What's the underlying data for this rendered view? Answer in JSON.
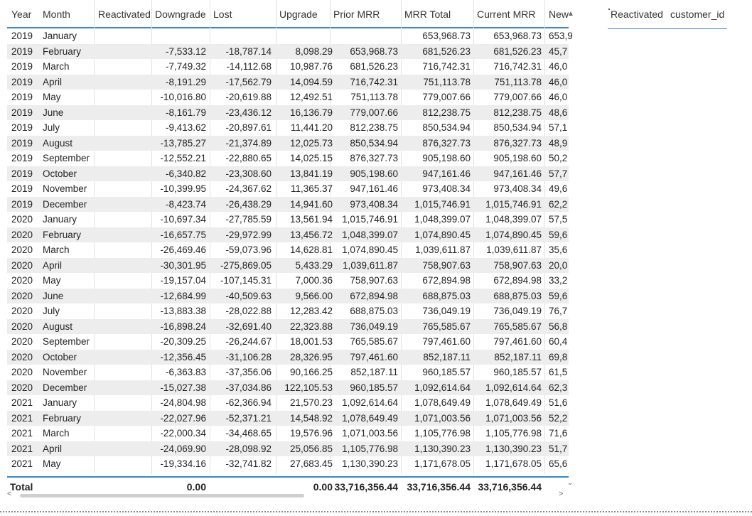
{
  "columns": [
    "Year",
    "Month",
    "Reactivated",
    "Downgrade",
    "Lost",
    "Upgrade",
    "Prior MRR",
    "MRR Total",
    "Current MRR",
    "New"
  ],
  "rows": [
    [
      "2019",
      "January",
      "",
      "",
      "",
      "",
      "",
      "653,968.73",
      "653,968.73",
      "653,9"
    ],
    [
      "2019",
      "February",
      "",
      "-7,533.12",
      "-18,787.14",
      "8,098.29",
      "653,968.73",
      "681,526.23",
      "681,526.23",
      "45,7"
    ],
    [
      "2019",
      "March",
      "",
      "-7,749.32",
      "-14,112.68",
      "10,987.76",
      "681,526.23",
      "716,742.31",
      "716,742.31",
      "46,0"
    ],
    [
      "2019",
      "April",
      "",
      "-8,191.29",
      "-17,562.79",
      "14,094.59",
      "716,742.31",
      "751,113.78",
      "751,113.78",
      "46,0"
    ],
    [
      "2019",
      "May",
      "",
      "-10,016.80",
      "-20,619.88",
      "12,492.51",
      "751,113.78",
      "779,007.66",
      "779,007.66",
      "46,0"
    ],
    [
      "2019",
      "June",
      "",
      "-8,161.79",
      "-23,436.12",
      "16,136.79",
      "779,007.66",
      "812,238.75",
      "812,238.75",
      "48,6"
    ],
    [
      "2019",
      "July",
      "",
      "-9,413.62",
      "-20,897.61",
      "11,441.20",
      "812,238.75",
      "850,534.94",
      "850,534.94",
      "57,1"
    ],
    [
      "2019",
      "August",
      "",
      "-13,785.27",
      "-21,374.89",
      "12,025.73",
      "850,534.94",
      "876,327.73",
      "876,327.73",
      "48,9"
    ],
    [
      "2019",
      "September",
      "",
      "-12,552.21",
      "-22,880.65",
      "14,025.15",
      "876,327.73",
      "905,198.60",
      "905,198.60",
      "50,2"
    ],
    [
      "2019",
      "October",
      "",
      "-6,340.82",
      "-23,308.60",
      "13,841.19",
      "905,198.60",
      "947,161.46",
      "947,161.46",
      "57,7"
    ],
    [
      "2019",
      "November",
      "",
      "-10,399.95",
      "-24,367.62",
      "11,365.37",
      "947,161.46",
      "973,408.34",
      "973,408.34",
      "49,6"
    ],
    [
      "2019",
      "December",
      "",
      "-8,423.74",
      "-26,438.29",
      "14,941.60",
      "973,408.34",
      "1,015,746.91",
      "1,015,746.91",
      "62,2"
    ],
    [
      "2020",
      "January",
      "",
      "-10,697.34",
      "-27,785.59",
      "13,561.94",
      "1,015,746.91",
      "1,048,399.07",
      "1,048,399.07",
      "57,5"
    ],
    [
      "2020",
      "February",
      "",
      "-16,657.75",
      "-29,972.99",
      "13,456.72",
      "1,048,399.07",
      "1,074,890.45",
      "1,074,890.45",
      "59,6"
    ],
    [
      "2020",
      "March",
      "",
      "-26,469.46",
      "-59,073.96",
      "14,628.81",
      "1,074,890.45",
      "1,039,611.87",
      "1,039,611.87",
      "35,6"
    ],
    [
      "2020",
      "April",
      "",
      "-30,301.95",
      "-275,869.05",
      "5,433.29",
      "1,039,611.87",
      "758,907.63",
      "758,907.63",
      "20,0"
    ],
    [
      "2020",
      "May",
      "",
      "-19,157.04",
      "-107,145.31",
      "7,000.36",
      "758,907.63",
      "672,894.98",
      "672,894.98",
      "33,2"
    ],
    [
      "2020",
      "June",
      "",
      "-12,684.99",
      "-40,509.63",
      "9,566.00",
      "672,894.98",
      "688,875.03",
      "688,875.03",
      "59,6"
    ],
    [
      "2020",
      "July",
      "",
      "-13,883.38",
      "-28,022.88",
      "12,283.42",
      "688,875.03",
      "736,049.19",
      "736,049.19",
      "76,7"
    ],
    [
      "2020",
      "August",
      "",
      "-16,898.24",
      "-32,691.40",
      "22,323.88",
      "736,049.19",
      "765,585.67",
      "765,585.67",
      "56,8"
    ],
    [
      "2020",
      "September",
      "",
      "-20,309.25",
      "-26,244.67",
      "18,001.53",
      "765,585.67",
      "797,461.60",
      "797,461.60",
      "60,4"
    ],
    [
      "2020",
      "October",
      "",
      "-12,356.45",
      "-31,106.28",
      "28,326.95",
      "797,461.60",
      "852,187.11",
      "852,187.11",
      "69,8"
    ],
    [
      "2020",
      "November",
      "",
      "-6,363.83",
      "-37,356.06",
      "90,166.25",
      "852,187.11",
      "960,185.57",
      "960,185.57",
      "61,5"
    ],
    [
      "2020",
      "December",
      "",
      "-15,027.38",
      "-37,034.86",
      "122,105.53",
      "960,185.57",
      "1,092,614.64",
      "1,092,614.64",
      "62,3"
    ],
    [
      "2021",
      "January",
      "",
      "-24,804.98",
      "-62,366.94",
      "21,570.23",
      "1,092,614.64",
      "1,078,649.49",
      "1,078,649.49",
      "51,6"
    ],
    [
      "2021",
      "February",
      "",
      "-22,027.96",
      "-52,371.21",
      "14,548.92",
      "1,078,649.49",
      "1,071,003.56",
      "1,071,003.56",
      "52,2"
    ],
    [
      "2021",
      "March",
      "",
      "-22,000.34",
      "-34,468.65",
      "19,576.96",
      "1,071,003.56",
      "1,105,776.98",
      "1,105,776.98",
      "71,6"
    ],
    [
      "2021",
      "April",
      "",
      "-24,069.90",
      "-28,098.92",
      "25,056.85",
      "1,105,776.98",
      "1,130,390.23",
      "1,130,390.23",
      "51,7"
    ],
    [
      "2021",
      "May",
      "",
      "-19,334.16",
      "-32,741.82",
      "27,683.45",
      "1,130,390.23",
      "1,171,678.05",
      "1,171,678.05",
      "65,6"
    ]
  ],
  "total": {
    "label": "Total",
    "downgrade": "0.00",
    "upgrade": "0.00",
    "prior_mrr": "33,716,356.44",
    "mrr_total": "33,716,356.44",
    "current_mrr": "33,716,356.44"
  },
  "side_panel": {
    "col1": "Reactivated",
    "col2": "customer_id"
  },
  "icons": {
    "scroll_up": "caret-up-icon",
    "scroll_down": "caret-down-icon",
    "scroll_left": "chevron-left-icon",
    "scroll_right": "chevron-right-icon"
  },
  "colors": {
    "accent_line": "#3a86c8",
    "alt_row": "#ededed"
  }
}
